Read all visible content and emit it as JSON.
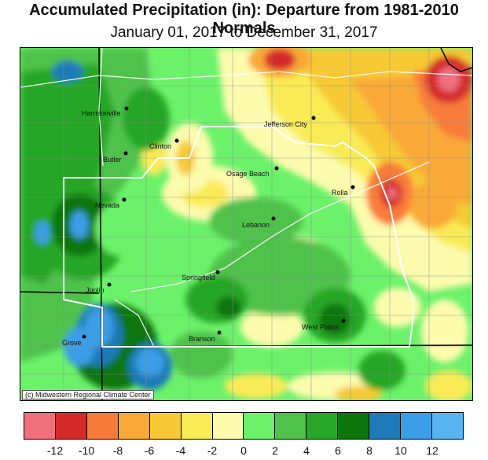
{
  "header": {
    "title": "Accumulated Precipitation (in): Departure from 1981-2010 Normals",
    "subtitle": "January 01, 2017 to December 31, 2017"
  },
  "credit": "(c) Midwestern Regional Climate Center",
  "cities": [
    {
      "name": "Harrisonville"
    },
    {
      "name": "Clinton"
    },
    {
      "name": "Butler"
    },
    {
      "name": "Jefferson City"
    },
    {
      "name": "Osage Beach"
    },
    {
      "name": "Rolla"
    },
    {
      "name": "Nevada"
    },
    {
      "name": "Lebanon"
    },
    {
      "name": "Springfield"
    },
    {
      "name": "Joplin"
    },
    {
      "name": "Grove"
    },
    {
      "name": "Branson"
    },
    {
      "name": "West Plains"
    }
  ],
  "legend": {
    "colors": [
      "#f0707e",
      "#d42a2a",
      "#f97b3a",
      "#f9a938",
      "#f6c935",
      "#f9eb56",
      "#fdfbad",
      "#6cf26a",
      "#4fc24c",
      "#27a627",
      "#0c760c",
      "#1e7ab8",
      "#3b9ee6",
      "#5ab4ef"
    ],
    "ticks": [
      "-12",
      "-10",
      "-8",
      "-6",
      "-4",
      "-2",
      "0",
      "2",
      "4",
      "6",
      "8",
      "10",
      "12"
    ]
  }
}
